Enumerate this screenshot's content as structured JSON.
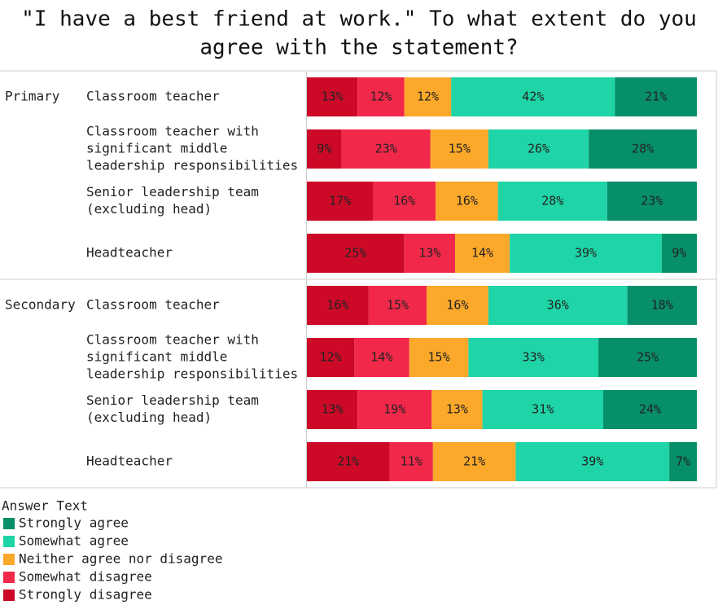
{
  "chart_data": {
    "type": "bar",
    "title": [
      "\"I have a best friend at work.\" To what extent do you",
      "agree with the statement?"
    ],
    "groups": [
      {
        "name": "Primary",
        "categories": [
          [
            "Classroom teacher"
          ],
          [
            "Classroom teacher with",
            "significant middle",
            "leadership responsibilities"
          ],
          [
            "Senior leadership team",
            "(excluding head)"
          ],
          [
            "Headteacher"
          ]
        ]
      },
      {
        "name": "Secondary",
        "categories": [
          [
            "Classroom teacher"
          ],
          [
            "Classroom teacher with",
            "significant middle",
            "leadership responsibilities"
          ],
          [
            "Senior leadership team",
            "(excluding head)"
          ],
          [
            "Headteacher"
          ]
        ]
      }
    ],
    "legend_title": "Answer Text",
    "series": [
      {
        "name": "Strongly disagree",
        "color": "#cc0a27",
        "values": [
          13,
          9,
          17,
          25,
          16,
          12,
          13,
          21
        ],
        "value_labels": [
          "13%",
          "9%",
          "17%",
          "25%",
          "16%",
          "12%",
          "13%",
          "21%"
        ]
      },
      {
        "name": "Somewhat disagree",
        "color": "#f2284b",
        "values": [
          12,
          23,
          16,
          13,
          15,
          14,
          19,
          11
        ],
        "value_labels": [
          "12%",
          "23%",
          "16%",
          "13%",
          "15%",
          "14%",
          "19%",
          "11%"
        ]
      },
      {
        "name": "Neither agree nor disagree",
        "color": "#fca82a",
        "values": [
          12,
          15,
          16,
          14,
          16,
          15,
          13,
          21
        ],
        "value_labels": [
          "12%",
          "15%",
          "16%",
          "14%",
          "16%",
          "15%",
          "13%",
          "21%"
        ]
      },
      {
        "name": "Somewhat agree",
        "color": "#1fd4a6",
        "values": [
          42,
          26,
          28,
          39,
          36,
          33,
          31,
          39
        ],
        "value_labels": [
          "42%",
          "26%",
          "28%",
          "39%",
          "36%",
          "33%",
          "31%",
          "39%"
        ]
      },
      {
        "name": "Strongly agree",
        "color": "#078f6a",
        "values": [
          21,
          28,
          23,
          9,
          18,
          25,
          24,
          7
        ],
        "value_labels": [
          "21%",
          "28%",
          "23%",
          "9%",
          "18%",
          "25%",
          "24%",
          "7%"
        ]
      }
    ]
  }
}
